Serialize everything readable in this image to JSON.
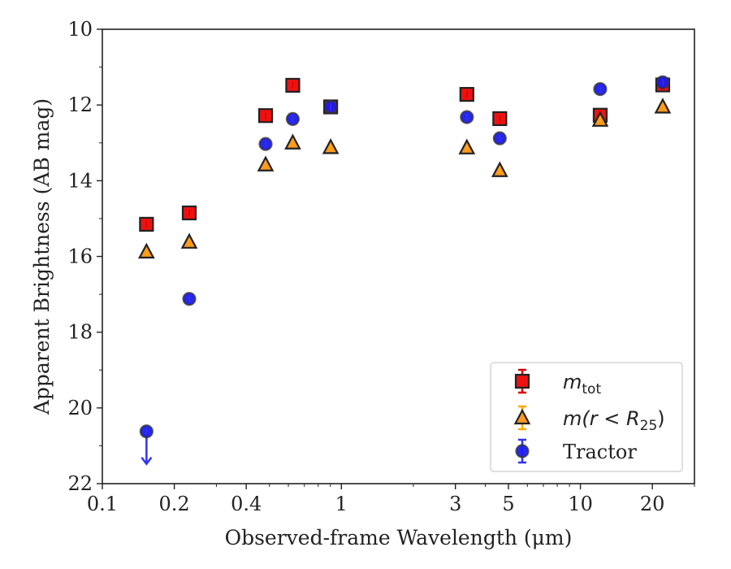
{
  "chart_data": {
    "type": "scatter",
    "xlabel": "Observed-frame Wavelength (μm)",
    "ylabel": "Apparent Brightness (AB mag)",
    "xscale": "log",
    "xlim": [
      0.1,
      30
    ],
    "ylim": [
      22,
      10
    ],
    "y_inverted": true,
    "x_ticks": [
      {
        "value": 0.1,
        "label": "0.1"
      },
      {
        "value": 0.2,
        "label": "0.2"
      },
      {
        "value": 0.4,
        "label": "0.4"
      },
      {
        "value": 1,
        "label": "1"
      },
      {
        "value": 3,
        "label": "3"
      },
      {
        "value": 5,
        "label": "5"
      },
      {
        "value": 10,
        "label": "10"
      },
      {
        "value": 20,
        "label": "20"
      }
    ],
    "y_ticks": [
      10,
      12,
      14,
      16,
      18,
      20,
      22
    ],
    "grid": false,
    "legend_position": "lower right",
    "series": [
      {
        "name": "m_tot",
        "legend_math": {
          "base": "m",
          "sub": "tot"
        },
        "marker": "square",
        "color": "#ee1111",
        "errcolor": "#dd0000",
        "points": [
          {
            "x": 0.153,
            "y": 15.15
          },
          {
            "x": 0.231,
            "y": 14.85
          },
          {
            "x": 0.482,
            "y": 12.28
          },
          {
            "x": 0.626,
            "y": 11.48
          },
          {
            "x": 0.902,
            "y": 12.05
          },
          {
            "x": 3.35,
            "y": 11.72
          },
          {
            "x": 4.6,
            "y": 12.36
          },
          {
            "x": 12.1,
            "y": 12.27
          },
          {
            "x": 22.1,
            "y": 11.47
          }
        ]
      },
      {
        "name": "m(r < R25)",
        "legend_math": {
          "base": "m(r < R",
          "sub": "25",
          "tail": ")"
        },
        "marker": "triangle",
        "color": "#ff9922",
        "errcolor": "#ffaa00",
        "points": [
          {
            "x": 0.153,
            "y": 15.88
          },
          {
            "x": 0.231,
            "y": 15.62
          },
          {
            "x": 0.482,
            "y": 13.58
          },
          {
            "x": 0.626,
            "y": 13.0
          },
          {
            "x": 0.902,
            "y": 13.12
          },
          {
            "x": 3.35,
            "y": 13.13
          },
          {
            "x": 4.6,
            "y": 13.73
          },
          {
            "x": 12.1,
            "y": 12.4
          },
          {
            "x": 22.1,
            "y": 12.05
          }
        ]
      },
      {
        "name": "Tractor",
        "marker": "circle",
        "color": "#1a1aee",
        "errcolor": "#3333ee",
        "points": [
          {
            "x": 0.153,
            "y": 20.62,
            "upper_limit": true
          },
          {
            "x": 0.231,
            "y": 17.12
          },
          {
            "x": 0.482,
            "y": 13.03
          },
          {
            "x": 0.626,
            "y": 12.37
          },
          {
            "x": 0.902,
            "y": 12.05
          },
          {
            "x": 3.35,
            "y": 12.32
          },
          {
            "x": 4.6,
            "y": 12.88
          },
          {
            "x": 12.1,
            "y": 11.58
          },
          {
            "x": 22.1,
            "y": 11.4
          }
        ]
      }
    ]
  }
}
